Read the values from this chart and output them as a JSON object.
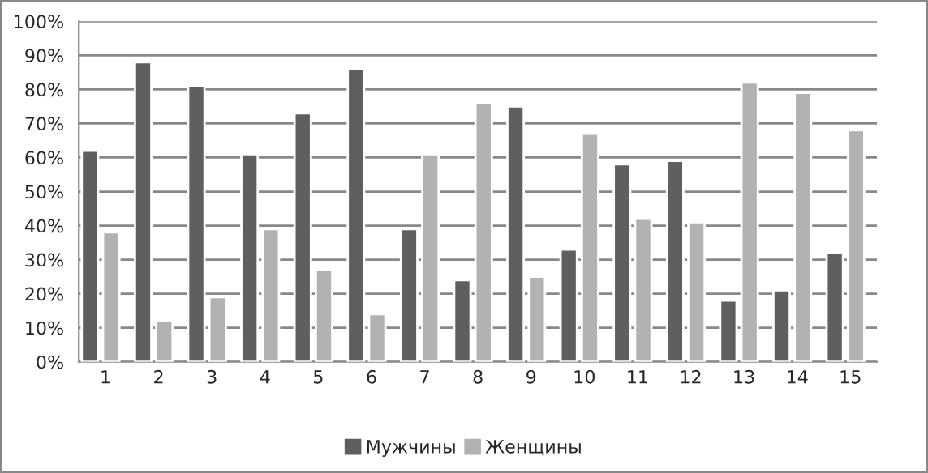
{
  "chart_data": {
    "type": "bar",
    "categories": [
      "1",
      "2",
      "3",
      "4",
      "5",
      "6",
      "7",
      "8",
      "9",
      "10",
      "11",
      "12",
      "13",
      "14",
      "15"
    ],
    "series": [
      {
        "name": "Мужчины",
        "color": "#5f5f5f",
        "values": [
          62,
          88,
          81,
          61,
          73,
          86,
          39,
          24,
          75,
          33,
          58,
          59,
          18,
          21,
          32
        ]
      },
      {
        "name": "Женщины",
        "color": "#b2b2b2",
        "values": [
          38,
          12,
          19,
          39,
          27,
          14,
          61,
          76,
          25,
          67,
          42,
          41,
          82,
          79,
          68
        ]
      }
    ],
    "ylim": [
      0,
      100
    ],
    "yticks": [
      {
        "value": 0,
        "label": "0%"
      },
      {
        "value": 10,
        "label": "10%"
      },
      {
        "value": 20,
        "label": "20%"
      },
      {
        "value": 30,
        "label": "30%"
      },
      {
        "value": 40,
        "label": "40%"
      },
      {
        "value": 50,
        "label": "50%"
      },
      {
        "value": 60,
        "label": "60%"
      },
      {
        "value": 70,
        "label": "70%"
      },
      {
        "value": 80,
        "label": "80%"
      },
      {
        "value": 90,
        "label": "90%"
      },
      {
        "value": 100,
        "label": "100%"
      }
    ],
    "grid": "y",
    "legend": "bottom"
  }
}
